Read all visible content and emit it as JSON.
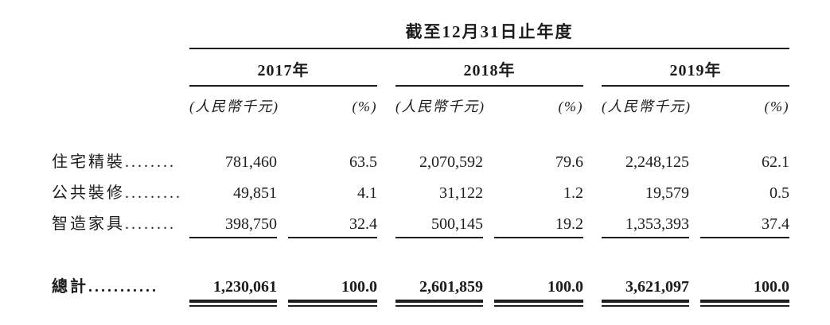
{
  "document": {
    "title": "截至12月31日止年度",
    "columns": {
      "unit_label": "(人民幣千元)",
      "percent_label": "(%)"
    },
    "years": [
      "2017年",
      "2018年",
      "2019年"
    ],
    "rows": [
      {
        "label": "住宅精裝",
        "dots": "........",
        "values": [
          "781,460",
          "63.5",
          "2,070,592",
          "79.6",
          "2,248,125",
          "62.1"
        ]
      },
      {
        "label": "公共裝修",
        "dots": ".........",
        "values": [
          "49,851",
          "4.1",
          "31,122",
          "1.2",
          "19,579",
          "0.5"
        ]
      },
      {
        "label": "智造家具",
        "dots": "........",
        "values": [
          "398,750",
          "32.4",
          "500,145",
          "19.2",
          "1,353,393",
          "37.4"
        ]
      }
    ],
    "total_row": {
      "label": "總計",
      "dots": "...........",
      "values": [
        "1,230,061",
        "100.0",
        "2,601,859",
        "100.0",
        "3,621,097",
        "100.0"
      ]
    }
  }
}
